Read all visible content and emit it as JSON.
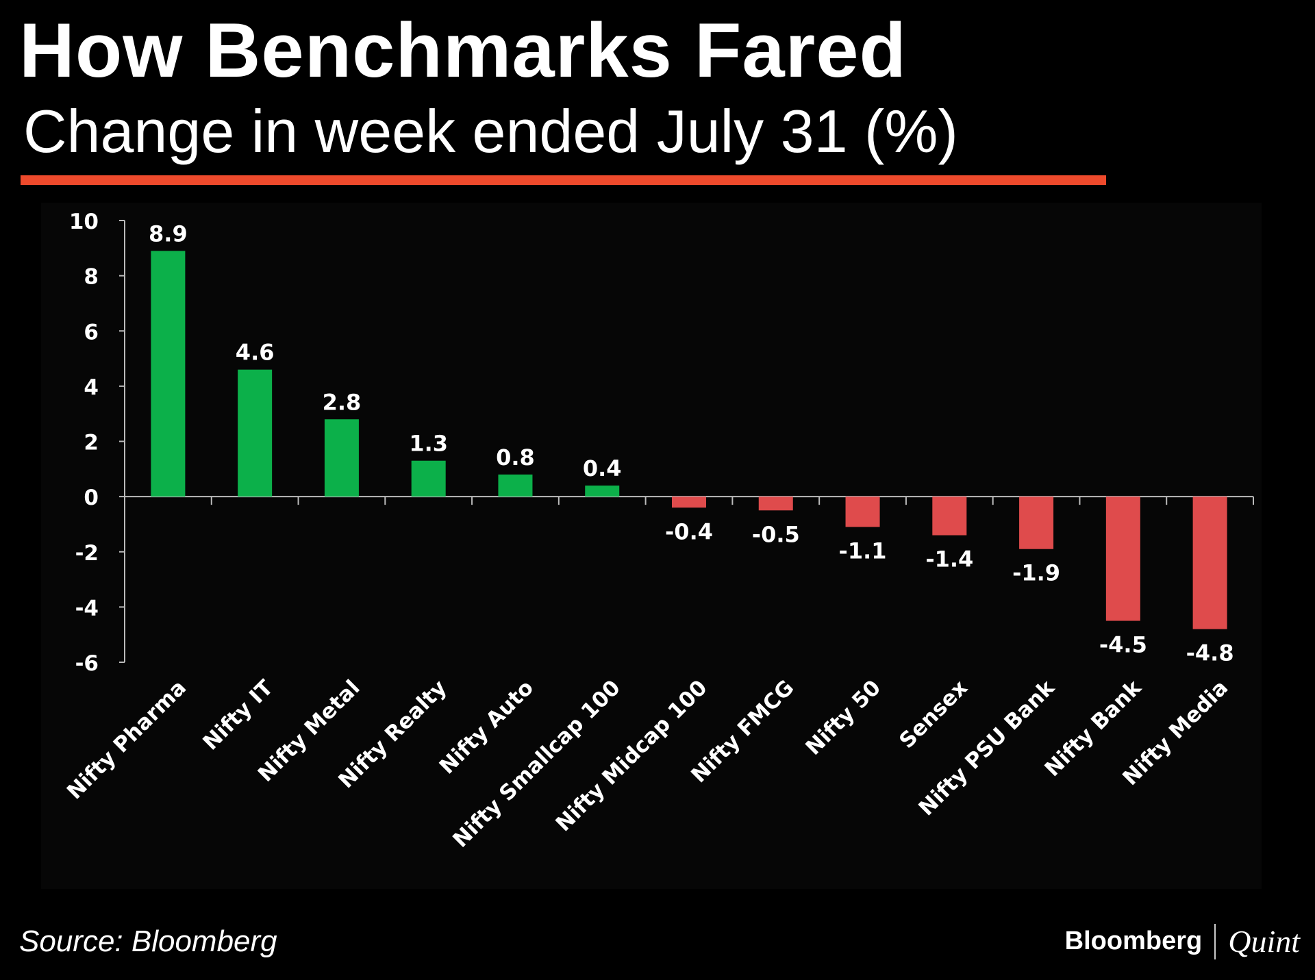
{
  "header": {
    "title": "How Benchmarks Fared",
    "subtitle": "Change in week ended July 31 (%)"
  },
  "footer": {
    "source": "Source: Bloomberg",
    "logo_left": "Bloomberg",
    "logo_right": "Quint"
  },
  "colors": {
    "positive": "#0cb04a",
    "negative": "#df4b4c",
    "accent_line": "#ee4a2c",
    "axis": "#bbbbbb"
  },
  "chart_data": {
    "type": "bar",
    "title": "How Benchmarks Fared",
    "subtitle": "Change in week ended July 31 (%)",
    "xlabel": "",
    "ylabel": "",
    "ylim": [
      -6,
      10
    ],
    "yticks": [
      10,
      8,
      6,
      4,
      2,
      0,
      -2,
      -4,
      -6
    ],
    "grid": false,
    "legend": "none",
    "categories": [
      "Nifty Pharma",
      "Nifty IT",
      "Nifty Metal",
      "Nifty Realty",
      "Nifty Auto",
      "Nifty Smallcap 100",
      "Nifty Midcap 100",
      "Nifty FMCG",
      "Nifty 50",
      "Sensex",
      "Nifty PSU Bank",
      "Nifty Bank",
      "Nifty Media"
    ],
    "values": [
      8.9,
      4.6,
      2.8,
      1.3,
      0.8,
      0.4,
      -0.4,
      -0.5,
      -1.1,
      -1.4,
      -1.9,
      -4.5,
      -4.8
    ]
  }
}
